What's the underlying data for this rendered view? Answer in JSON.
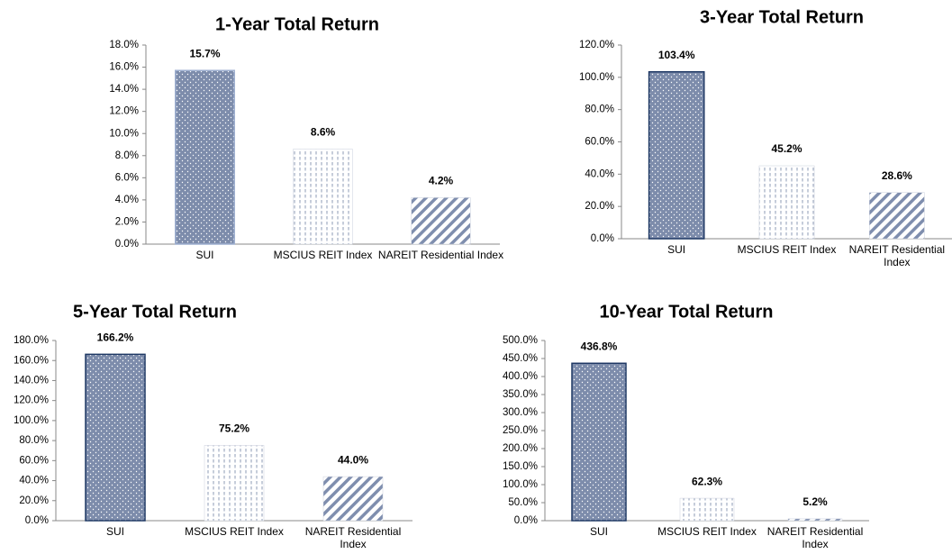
{
  "chart_data": [
    {
      "type": "bar",
      "title": "1-Year Total Return",
      "categories": [
        "SUI",
        "MSCIUS REIT Index",
        "NAREIT Residential Index"
      ],
      "values": [
        15.7,
        8.6,
        4.2
      ],
      "value_labels": [
        "15.7%",
        "8.6%",
        "4.2%"
      ],
      "colors": [
        "#7d8cab",
        "#8e9bb6",
        "#7f8eae"
      ],
      "ylim": [
        0,
        18
      ],
      "yticks": [
        {
          "value": 0,
          "label": "0.0%"
        },
        {
          "value": 2,
          "label": "2.0%"
        },
        {
          "value": 4,
          "label": "4.0%"
        },
        {
          "value": 6,
          "label": "6.0%"
        },
        {
          "value": 8,
          "label": "8.0%"
        },
        {
          "value": 10,
          "label": "10.0%"
        },
        {
          "value": 12,
          "label": "12.0%"
        },
        {
          "value": 14,
          "label": "14.0%"
        },
        {
          "value": 16,
          "label": "16.0%"
        },
        {
          "value": 18,
          "label": "18.0%"
        }
      ]
    },
    {
      "type": "bar",
      "title": "3-Year Total Return",
      "categories": [
        "SUI",
        "MSCIUS REIT Index",
        "NAREIT Residential Index"
      ],
      "values": [
        103.4,
        45.2,
        28.6
      ],
      "value_labels": [
        "103.4%",
        "45.2%",
        "28.6%"
      ],
      "colors": [
        "#7d8cab",
        "#8e9bb6",
        "#7f8eae"
      ],
      "ylim": [
        0,
        120
      ],
      "yticks": [
        {
          "value": 0,
          "label": "0.0%"
        },
        {
          "value": 20,
          "label": "20.0%"
        },
        {
          "value": 40,
          "label": "40.0%"
        },
        {
          "value": 60,
          "label": "60.0%"
        },
        {
          "value": 80,
          "label": "80.0%"
        },
        {
          "value": 100,
          "label": "100.0%"
        },
        {
          "value": 120,
          "label": "120.0%"
        }
      ]
    },
    {
      "type": "bar",
      "title": "5-Year Total Return",
      "categories": [
        "SUI",
        "MSCIUS REIT Index",
        "NAREIT Residential Index"
      ],
      "values": [
        166.2,
        75.2,
        44.0
      ],
      "value_labels": [
        "166.2%",
        "75.2%",
        "44.0%"
      ],
      "colors": [
        "#7d8cab",
        "#8e9bb6",
        "#7f8eae"
      ],
      "ylim": [
        0,
        180
      ],
      "yticks": [
        {
          "value": 0,
          "label": "0.0%"
        },
        {
          "value": 20,
          "label": "20.0%"
        },
        {
          "value": 40,
          "label": "40.0%"
        },
        {
          "value": 60,
          "label": "60.0%"
        },
        {
          "value": 80,
          "label": "80.0%"
        },
        {
          "value": 100,
          "label": "100.0%"
        },
        {
          "value": 120,
          "label": "120.0%"
        },
        {
          "value": 140,
          "label": "140.0%"
        },
        {
          "value": 160,
          "label": "160.0%"
        },
        {
          "value": 180,
          "label": "180.0%"
        }
      ]
    },
    {
      "type": "bar",
      "title": "10-Year Total Return",
      "categories": [
        "SUI",
        "MSCIUS REIT Index",
        "NAREIT Residential Index"
      ],
      "values": [
        436.8,
        62.3,
        5.2
      ],
      "value_labels": [
        "436.8%",
        "62.3%",
        "5.2%"
      ],
      "colors": [
        "#7d8cab",
        "#8e9bb6",
        "#7f8eae"
      ],
      "ylim": [
        0,
        500
      ],
      "yticks": [
        {
          "value": 0,
          "label": "0.0%"
        },
        {
          "value": 50,
          "label": "50.0%"
        },
        {
          "value": 100,
          "label": "100.0%"
        },
        {
          "value": 150,
          "label": "150.0%"
        },
        {
          "value": 200,
          "label": "200.0%"
        },
        {
          "value": 250,
          "label": "250.0%"
        },
        {
          "value": 300,
          "label": "300.0%"
        },
        {
          "value": 350,
          "label": "350.0%"
        },
        {
          "value": 400,
          "label": "400.0%"
        },
        {
          "value": 450,
          "label": "450.0%"
        },
        {
          "value": 500,
          "label": "500.0%"
        }
      ]
    }
  ]
}
